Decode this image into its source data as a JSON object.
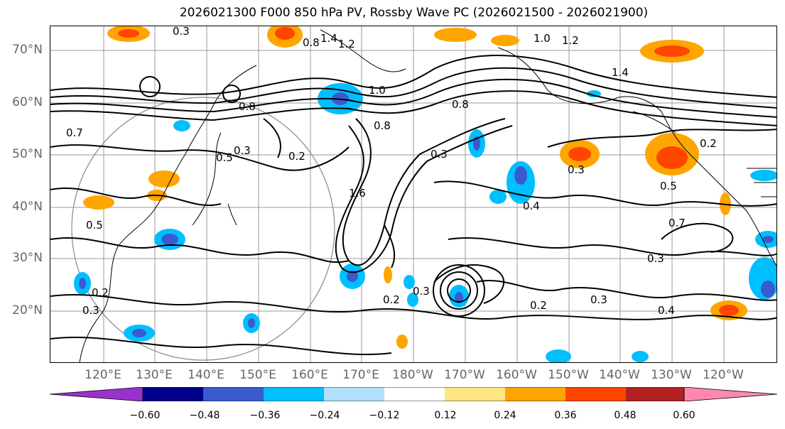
{
  "title": "2026021300 F000 850 hPa PV, Rossby Wave PC (2026021500 - 2026021900)",
  "lat_labels": [
    "70°N",
    "60°N",
    "50°N",
    "40°N",
    "30°N",
    "20°N"
  ],
  "lon_labels": [
    "120°E",
    "130°E",
    "140°E",
    "150°E",
    "160°E",
    "170°E",
    "180°W",
    "170°W",
    "160°W",
    "150°W",
    "140°W",
    "130°W",
    "120°W"
  ],
  "contour_labels": [
    "0.3",
    "0.8",
    "1.4",
    "1.2",
    "1.0",
    "1.2",
    "1.4",
    "0.8",
    "1.0",
    "0.8",
    "0.5",
    "0.2",
    "0.5",
    "0.7",
    "0.3",
    "0.2",
    "0.3",
    "0.3",
    "0.3",
    "0.4",
    "0.2",
    "0.3",
    "0.8",
    "0.7",
    "0.5",
    "0.3",
    "0.2",
    "0.2",
    "0.3",
    "0.4",
    "1.6"
  ],
  "colorbar": {
    "ticks": [
      "−0.60",
      "−0.48",
      "−0.36",
      "−0.24",
      "−0.12",
      "0.12",
      "0.24",
      "0.36",
      "0.48",
      "0.60"
    ],
    "colors": [
      "#9932CC",
      "#00008B",
      "#3A5BD0",
      "#00BFFF",
      "#B0E0FA",
      "#FFFFFF",
      "#FFE680",
      "#FFA500",
      "#FF4500",
      "#B22222",
      "#FF88B0"
    ]
  }
}
